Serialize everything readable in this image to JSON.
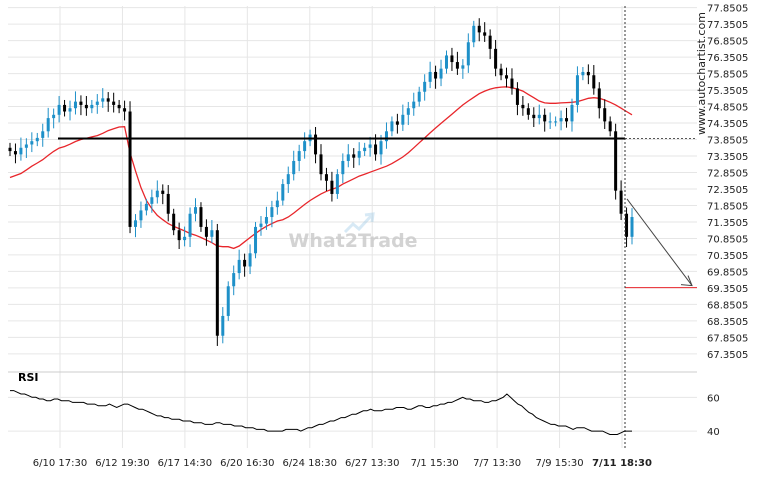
{
  "watermark": {
    "brand": "What2Trade",
    "site": "www.autochartist.com"
  },
  "colors": {
    "bull": "#1e90c8",
    "bear": "#000000",
    "ma": "#e8262b",
    "support": "#000000",
    "target": "#e8262b",
    "rsi": "#000000",
    "grid": "#e6e6e6"
  },
  "chart_data": [
    {
      "type": "candlestick",
      "title": "",
      "xlabel": "",
      "ylabel": "",
      "ylim": [
        66.8,
        77.9
      ],
      "y_ticks": [
        "77.8505",
        "77.3505",
        "76.8505",
        "76.3505",
        "75.8505",
        "75.3505",
        "74.8505",
        "74.3505",
        "73.8505",
        "73.3505",
        "72.8505",
        "72.3505",
        "71.8505",
        "71.3505",
        "70.8505",
        "70.3505",
        "69.8505",
        "69.3505",
        "68.8505",
        "68.3505",
        "67.8505",
        "67.3505"
      ],
      "x_ticks": [
        "6/10 17:30",
        "6/12 19:30",
        "6/17 14:30",
        "6/20 16:30",
        "6/24 18:30",
        "6/27 13:30",
        "7/1 15:30",
        "7/7 13:30",
        "7/9 15:30",
        "7/11 18:30"
      ],
      "support_level": 73.88,
      "target_level": 69.36,
      "projection": {
        "from": 72.05,
        "to": 69.36
      },
      "close_series": [
        73.5,
        73.4,
        73.6,
        73.7,
        73.8,
        73.9,
        74.1,
        74.5,
        74.6,
        74.9,
        74.7,
        74.8,
        75.0,
        74.9,
        74.8,
        74.9,
        75.0,
        75.1,
        75.0,
        74.9,
        74.8,
        74.7,
        71.2,
        71.4,
        71.7,
        71.9,
        72.1,
        72.3,
        72.2,
        71.6,
        71.1,
        70.8,
        70.9,
        71.6,
        71.8,
        71.2,
        70.9,
        71.1,
        67.9,
        68.5,
        69.4,
        69.8,
        70.2,
        70.0,
        70.4,
        71.2,
        71.3,
        71.5,
        71.8,
        72.0,
        72.5,
        72.8,
        73.2,
        73.5,
        73.8,
        74.0,
        73.4,
        72.8,
        72.6,
        72.2,
        72.8,
        73.2,
        73.4,
        73.3,
        73.5,
        73.6,
        73.7,
        73.4,
        73.8,
        74.1,
        74.4,
        74.3,
        74.6,
        74.8,
        75.0,
        75.3,
        75.6,
        75.9,
        75.7,
        76.0,
        76.4,
        76.2,
        76.0,
        76.1,
        76.8,
        77.3,
        77.1,
        77.0,
        76.6,
        76.0,
        75.8,
        75.7,
        75.4,
        74.9,
        74.8,
        74.6,
        74.5,
        74.6,
        74.4,
        74.4,
        74.4,
        74.5,
        74.4,
        74.9,
        75.8,
        75.9,
        75.8,
        75.4,
        74.8,
        74.4,
        74.1,
        72.3,
        71.6,
        70.9,
        71.5
      ],
      "ma_series": [
        72.7,
        72.76,
        72.82,
        72.93,
        73.04,
        73.14,
        73.24,
        73.37,
        73.49,
        73.59,
        73.64,
        73.71,
        73.79,
        73.85,
        73.89,
        73.93,
        73.97,
        74.04,
        74.12,
        74.18,
        74.23,
        74.24,
        73.45,
        72.9,
        72.4,
        72.0,
        71.75,
        71.55,
        71.42,
        71.3,
        71.22,
        71.15,
        71.08,
        71.0,
        70.95,
        70.88,
        70.8,
        70.72,
        70.62,
        70.6,
        70.6,
        70.55,
        70.62,
        70.75,
        70.88,
        71.0,
        71.12,
        71.22,
        71.3,
        71.38,
        71.42,
        71.5,
        71.62,
        71.75,
        71.88,
        72.0,
        72.1,
        72.2,
        72.28,
        72.34,
        72.4,
        72.5,
        72.58,
        72.66,
        72.74,
        72.8,
        72.86,
        72.92,
        72.98,
        73.04,
        73.12,
        73.22,
        73.32,
        73.45,
        73.6,
        73.75,
        73.9,
        74.05,
        74.2,
        74.34,
        74.48,
        74.62,
        74.76,
        74.9,
        75.02,
        75.13,
        75.24,
        75.32,
        75.38,
        75.42,
        75.44,
        75.45,
        75.42,
        75.38,
        75.32,
        75.22,
        75.12,
        75.02,
        74.96,
        74.95,
        74.95,
        74.96,
        74.97,
        74.98,
        75.0,
        75.05,
        75.1,
        75.12,
        75.1,
        75.05,
        74.98,
        74.9,
        74.8,
        74.7,
        74.6
      ]
    },
    {
      "type": "line",
      "title": "RSI",
      "xlabel": "",
      "ylabel": "",
      "ylim": [
        30,
        75
      ],
      "y_ticks": [
        "60",
        "40"
      ],
      "rsi_series": [
        64,
        64,
        63,
        62,
        62,
        61,
        60,
        60,
        59,
        59,
        58,
        58,
        59,
        59,
        58,
        58,
        58,
        57,
        57,
        57,
        57,
        56,
        56,
        56,
        55,
        55,
        55,
        56,
        55,
        54,
        55,
        56,
        56,
        55,
        54,
        53,
        53,
        52,
        51,
        50,
        49,
        49,
        48,
        48,
        47,
        47,
        47,
        46,
        46,
        46,
        45,
        45,
        45,
        44,
        44,
        44,
        45,
        45,
        44,
        44,
        44,
        43,
        43,
        43,
        42,
        42,
        42,
        41,
        41,
        41,
        40,
        40,
        40,
        40,
        40,
        41,
        41,
        41,
        41,
        40,
        41,
        42,
        42,
        43,
        44,
        44,
        45,
        46,
        46,
        47,
        48,
        48,
        49,
        50,
        50,
        51,
        52,
        52,
        53,
        52,
        52,
        52,
        53,
        53,
        53,
        54,
        54,
        54,
        53,
        53,
        54,
        55,
        55,
        54,
        54,
        55,
        55,
        56,
        56,
        57,
        57,
        58,
        59,
        60,
        59,
        59,
        58,
        58,
        58,
        57,
        57,
        58,
        58,
        59,
        60,
        62,
        60,
        58,
        56,
        55,
        53,
        51,
        50,
        48,
        47,
        46,
        45,
        44,
        44,
        43,
        43,
        43,
        42,
        41,
        42,
        42,
        42,
        41,
        40,
        40,
        40,
        40,
        39,
        38,
        38,
        38,
        39,
        40,
        40,
        40
      ]
    }
  ]
}
